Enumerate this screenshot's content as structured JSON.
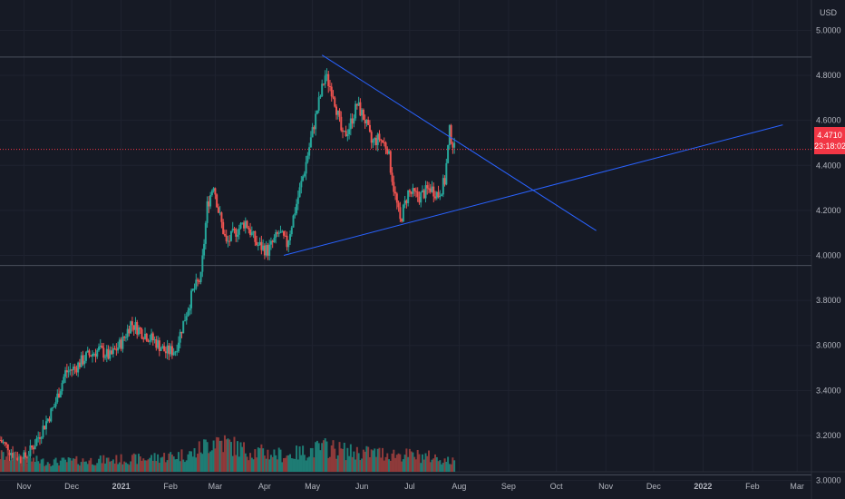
{
  "colors": {
    "background": "#161a25",
    "grid": "#1f2330",
    "text": "#b2b5be",
    "up": "#26a69a",
    "down": "#ef5350",
    "volume_up": "#1e7c74",
    "volume_down": "#8e3a3a",
    "trendline": "#2962ff",
    "last_price": "#f23645",
    "hline": "#4a4f5c"
  },
  "currency": "USD",
  "last_price_label": "4.4710",
  "countdown_label": "23:18:02",
  "chart_data": {
    "type": "candlestick",
    "y_axis": {
      "ticks": [
        "5.0000",
        "4.8000",
        "4.6000",
        "4.4000",
        "4.2000",
        "4.0000",
        "3.8000",
        "3.6000",
        "3.4000",
        "3.2000",
        "3.0000"
      ],
      "tick_values": [
        5.0,
        4.8,
        4.6,
        4.4,
        4.2,
        4.0,
        3.8,
        3.6,
        3.4,
        3.2,
        3.0
      ],
      "range": [
        2.95,
        5.05
      ]
    },
    "x_axis": {
      "ticks": [
        "Nov",
        "Dec",
        "2021",
        "Feb",
        "Mar",
        "Apr",
        "May",
        "Jun",
        "Jul",
        "Aug",
        "Sep",
        "Oct",
        "Nov",
        "Dec",
        "2022",
        "Feb",
        "Mar"
      ],
      "tick_dates": [
        "2020-11-01",
        "2020-12-01",
        "2021-01-01",
        "2021-02-01",
        "2021-03-01",
        "2021-04-01",
        "2021-05-01",
        "2021-06-01",
        "2021-07-01",
        "2021-08-01",
        "2021-09-01",
        "2021-10-01",
        "2021-11-01",
        "2021-12-01",
        "2022-01-01",
        "2022-02-01",
        "2022-03-01"
      ],
      "range": [
        "2020-10-17",
        "2022-03-10"
      ]
    },
    "last_price": 4.471,
    "horizontal_lines": [
      4.881,
      3.955,
      3.025
    ],
    "trendlines": [
      {
        "name": "descending",
        "from": {
          "date": "2021-05-07",
          "value": 4.89
        },
        "to": {
          "date": "2021-10-26",
          "value": 4.11
        }
      },
      {
        "name": "ascending",
        "from": {
          "date": "2021-04-13",
          "value": 4.0
        },
        "to": {
          "date": "2022-02-20",
          "value": 4.58
        }
      }
    ],
    "price_path": [
      [
        "2020-10-17",
        3.18
      ],
      [
        "2020-10-25",
        3.12
      ],
      [
        "2020-10-31",
        3.09
      ],
      [
        "2020-11-05",
        3.13
      ],
      [
        "2020-11-12",
        3.22
      ],
      [
        "2020-11-20",
        3.33
      ],
      [
        "2020-11-27",
        3.48
      ],
      [
        "2020-12-03",
        3.5
      ],
      [
        "2020-12-10",
        3.55
      ],
      [
        "2020-12-18",
        3.58
      ],
      [
        "2020-12-25",
        3.55
      ],
      [
        "2021-01-02",
        3.62
      ],
      [
        "2021-01-07",
        3.7
      ],
      [
        "2021-01-14",
        3.66
      ],
      [
        "2021-01-22",
        3.62
      ],
      [
        "2021-01-29",
        3.57
      ],
      [
        "2021-02-04",
        3.58
      ],
      [
        "2021-02-09",
        3.7
      ],
      [
        "2021-02-15",
        3.84
      ],
      [
        "2021-02-20",
        3.9
      ],
      [
        "2021-02-24",
        4.22
      ],
      [
        "2021-02-28",
        4.32
      ],
      [
        "2021-03-03",
        4.2
      ],
      [
        "2021-03-08",
        4.05
      ],
      [
        "2021-03-13",
        4.1
      ],
      [
        "2021-03-20",
        4.15
      ],
      [
        "2021-03-27",
        4.05
      ],
      [
        "2021-04-03",
        4.02
      ],
      [
        "2021-04-10",
        4.1
      ],
      [
        "2021-04-15",
        4.05
      ],
      [
        "2021-04-20",
        4.2
      ],
      [
        "2021-04-26",
        4.38
      ],
      [
        "2021-05-01",
        4.55
      ],
      [
        "2021-05-05",
        4.68
      ],
      [
        "2021-05-09",
        4.8
      ],
      [
        "2021-05-14",
        4.72
      ],
      [
        "2021-05-20",
        4.52
      ],
      [
        "2021-05-24",
        4.57
      ],
      [
        "2021-05-29",
        4.67
      ],
      [
        "2021-06-03",
        4.6
      ],
      [
        "2021-06-07",
        4.5
      ],
      [
        "2021-06-12",
        4.52
      ],
      [
        "2021-06-17",
        4.48
      ],
      [
        "2021-06-21",
        4.3
      ],
      [
        "2021-06-25",
        4.15
      ],
      [
        "2021-06-30",
        4.28
      ],
      [
        "2021-07-07",
        4.26
      ],
      [
        "2021-07-14",
        4.3
      ],
      [
        "2021-07-19",
        4.27
      ],
      [
        "2021-07-23",
        4.33
      ],
      [
        "2021-07-26",
        4.55
      ],
      [
        "2021-07-29",
        4.471
      ]
    ],
    "volume_path": [
      [
        "2020-10-17",
        0.5
      ],
      [
        "2020-11-15",
        0.3
      ],
      [
        "2020-12-15",
        0.35
      ],
      [
        "2021-01-15",
        0.4
      ],
      [
        "2021-02-15",
        0.55
      ],
      [
        "2021-03-01",
        1.0
      ],
      [
        "2021-03-20",
        0.65
      ],
      [
        "2021-04-15",
        0.5
      ],
      [
        "2021-05-10",
        0.75
      ],
      [
        "2021-05-25",
        0.6
      ],
      [
        "2021-06-20",
        0.55
      ],
      [
        "2021-07-15",
        0.45
      ],
      [
        "2021-07-29",
        0.3
      ]
    ],
    "volume_max_label": "",
    "grid": true
  }
}
